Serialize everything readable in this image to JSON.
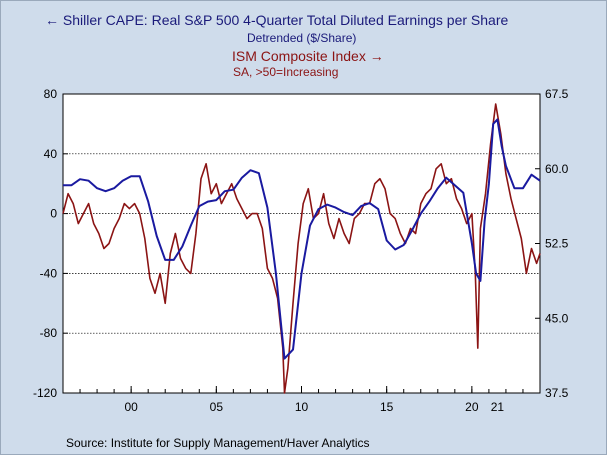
{
  "legend": {
    "series1_title": "Shiller CAPE: Real S&P 500 4-Quarter Total Diluted Earnings per Share",
    "series1_sub": "Detrended ($/Share)",
    "series2_title": "ISM Composite Index",
    "series2_sub": "SA, >50=Increasing",
    "series1_arrow": "←",
    "series2_arrow": "→"
  },
  "source": "Source:  Institute for Supply Management/Haver Analytics",
  "colors": {
    "series1": "#1a1aa0",
    "series2": "#8b1414",
    "plot_bg": "#ffffff",
    "frame_bg": "#cfdceb"
  },
  "chart_data": {
    "type": "line",
    "xlim": [
      1996.0,
      2024.0
    ],
    "x_tick_labels": [
      "00",
      "05",
      "10",
      "15",
      "20"
    ],
    "x_tick_values": [
      2000,
      2005,
      2010,
      2015,
      2020
    ],
    "x_tick_21": "21",
    "x_tick_21_value": 2021.5,
    "x_minor_ticks": [
      1996,
      1997,
      1998,
      1999,
      2000,
      2001,
      2002,
      2003,
      2004,
      2005,
      2006,
      2007,
      2008,
      2009,
      2010,
      2011,
      2012,
      2013,
      2014,
      2015,
      2016,
      2017,
      2018,
      2019,
      2020,
      2021,
      2022,
      2023
    ],
    "y_left": {
      "lim": [
        -120,
        80
      ],
      "ticks": [
        80,
        40,
        0,
        -40,
        -80,
        -120
      ],
      "tick_labels": [
        "80",
        "40",
        "0",
        "-40",
        "-80",
        "-120"
      ]
    },
    "y_right": {
      "lim": [
        37.5,
        67.5
      ],
      "ticks": [
        67.5,
        60.0,
        52.5,
        45.0,
        37.5
      ],
      "tick_labels": [
        "67.5",
        "60.0",
        "52.5",
        "45.0",
        "37.5"
      ]
    },
    "grid": "horizontal-dashed",
    "series": [
      {
        "name": "Shiller CAPE: Real S&P 500 4-Quarter Total Diluted Earnings per Share",
        "axis": "left",
        "x": [
          1996.0,
          1996.5,
          1997.0,
          1997.5,
          1998.0,
          1998.5,
          1999.0,
          1999.5,
          2000.0,
          2000.5,
          2001.0,
          2001.5,
          2002.0,
          2002.5,
          2003.0,
          2003.5,
          2004.0,
          2004.5,
          2005.0,
          2005.5,
          2006.0,
          2006.5,
          2007.0,
          2007.5,
          2008.0,
          2008.5,
          2009.0,
          2009.5,
          2010.0,
          2010.5,
          2011.0,
          2011.5,
          2012.0,
          2012.5,
          2013.0,
          2013.5,
          2014.0,
          2014.5,
          2015.0,
          2015.5,
          2016.0,
          2016.5,
          2017.0,
          2017.5,
          2018.0,
          2018.5,
          2019.0,
          2019.5,
          2020.0,
          2020.25,
          2020.5,
          2020.75,
          2021.0,
          2021.25,
          2021.5,
          2021.75,
          2022.0,
          2022.5,
          2023.0,
          2023.5,
          2024.0
        ],
        "values": [
          19,
          19,
          23,
          22,
          17,
          15,
          17,
          22,
          25,
          25,
          8,
          -15,
          -31,
          -31,
          -22,
          -8,
          5,
          8,
          9,
          15,
          16,
          24,
          29,
          27,
          4,
          -40,
          -97,
          -91,
          -40,
          -8,
          3,
          6,
          4,
          1,
          -1,
          5,
          7,
          3,
          -18,
          -24,
          -21,
          -11,
          0,
          8,
          17,
          24,
          19,
          14,
          -20,
          -40,
          -45,
          -5,
          20,
          60,
          63,
          45,
          32,
          17,
          17,
          26,
          22
        ]
      },
      {
        "name": "ISM Composite Index",
        "axis": "right",
        "x": [
          1996.0,
          1996.3,
          1996.6,
          1996.9,
          1997.2,
          1997.5,
          1997.8,
          1998.1,
          1998.4,
          1998.7,
          1999.0,
          1999.3,
          1999.6,
          1999.9,
          2000.2,
          2000.5,
          2000.8,
          2001.1,
          2001.4,
          2001.7,
          2002.0,
          2002.3,
          2002.6,
          2002.9,
          2003.2,
          2003.5,
          2003.8,
          2004.1,
          2004.4,
          2004.7,
          2005.0,
          2005.3,
          2005.6,
          2005.9,
          2006.2,
          2006.5,
          2006.8,
          2007.1,
          2007.4,
          2007.7,
          2008.0,
          2008.3,
          2008.6,
          2008.9,
          2009.0,
          2009.2,
          2009.5,
          2009.8,
          2010.1,
          2010.4,
          2010.7,
          2011.0,
          2011.3,
          2011.6,
          2011.9,
          2012.2,
          2012.5,
          2012.8,
          2013.1,
          2013.4,
          2013.7,
          2014.0,
          2014.3,
          2014.6,
          2014.9,
          2015.2,
          2015.5,
          2015.8,
          2016.1,
          2016.4,
          2016.7,
          2017.0,
          2017.3,
          2017.6,
          2017.9,
          2018.2,
          2018.5,
          2018.8,
          2019.1,
          2019.4,
          2019.7,
          2020.0,
          2020.2,
          2020.35,
          2020.5,
          2020.8,
          2021.1,
          2021.4,
          2021.7,
          2022.0,
          2022.3,
          2022.6,
          2022.9,
          2023.2,
          2023.5,
          2023.8,
          2024.0
        ],
        "values": [
          55.5,
          57.5,
          56.5,
          54.5,
          55.5,
          56.5,
          54.5,
          53.5,
          52.0,
          52.5,
          54.0,
          55.0,
          56.5,
          56.0,
          56.5,
          55.5,
          53.0,
          49.0,
          47.5,
          49.5,
          46.5,
          51.5,
          53.5,
          51.0,
          50.0,
          49.5,
          53.5,
          59.0,
          60.5,
          57.5,
          58.5,
          56.5,
          57.5,
          58.5,
          57.0,
          56.0,
          55.0,
          55.5,
          55.5,
          54.0,
          50.0,
          49.0,
          47.0,
          42.0,
          37.5,
          40.0,
          46.5,
          52.5,
          56.5,
          58.0,
          55.0,
          55.5,
          57.5,
          54.5,
          53.0,
          55.0,
          53.5,
          52.5,
          55.0,
          55.5,
          56.5,
          56.5,
          58.5,
          59.0,
          58.0,
          55.5,
          55.0,
          53.5,
          52.5,
          54.0,
          53.5,
          56.5,
          57.5,
          58.0,
          60.0,
          60.5,
          58.5,
          59.0,
          57.0,
          56.0,
          54.5,
          55.5,
          49.5,
          42.0,
          54.0,
          57.5,
          62.5,
          66.5,
          63.5,
          59.5,
          57.0,
          55.0,
          53.0,
          49.5,
          52.0,
          50.5,
          51.5
        ]
      }
    ]
  }
}
